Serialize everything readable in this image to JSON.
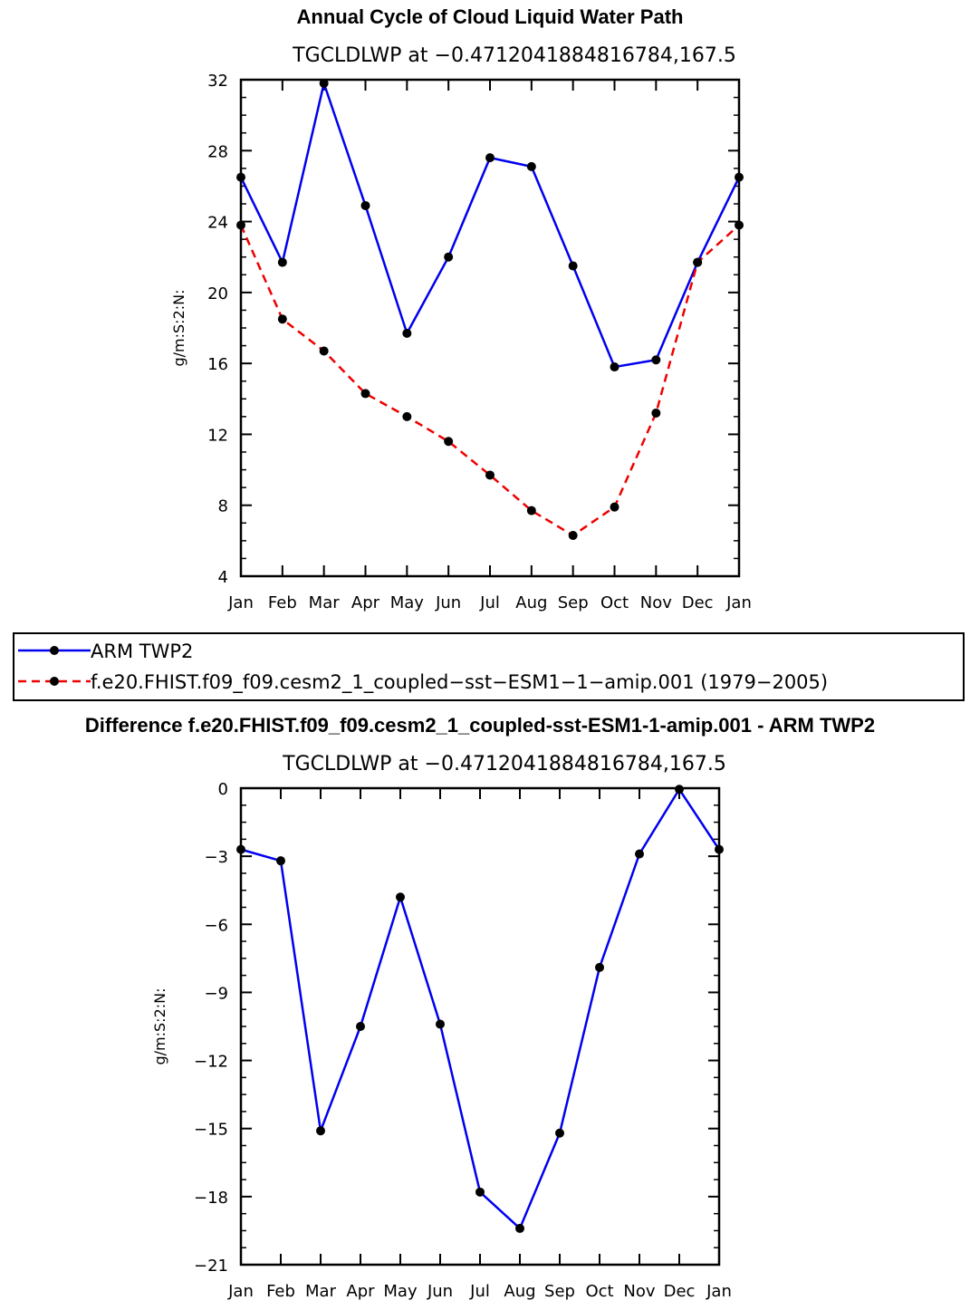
{
  "chart_data": [
    {
      "type": "line",
      "title": "Annual Cycle of Cloud Liquid Water Path",
      "subtitle": "TGCLDLWP at −0.4712041884816784,167.5",
      "xlabel": "",
      "ylabel": "g/m:S:2:N:",
      "ylim": [
        4,
        32
      ],
      "yticks": [
        "32",
        "28",
        "24",
        "20",
        "16",
        "12",
        "8",
        "4"
      ],
      "ytick_values": [
        32,
        28,
        24,
        20,
        16,
        12,
        8,
        4
      ],
      "categories": [
        "Jan",
        "Feb",
        "Mar",
        "Apr",
        "May",
        "Jun",
        "Jul",
        "Aug",
        "Sep",
        "Oct",
        "Nov",
        "Dec",
        "Jan"
      ],
      "series": [
        {
          "name": "ARM TWP2",
          "color": "#0000ee",
          "dash": "solid",
          "values": [
            26.5,
            21.7,
            31.8,
            24.9,
            17.7,
            22.0,
            27.6,
            27.1,
            21.5,
            15.8,
            16.2,
            21.7,
            26.5
          ]
        },
        {
          "name": "f.e20.FHIST.f09_f09.cesm2_1_coupled−sst−ESM1−1−amip.001 (1979−2005)",
          "color": "#ee0000",
          "dash": "dashed",
          "values": [
            23.8,
            18.5,
            16.7,
            14.3,
            13.0,
            11.6,
            9.7,
            7.7,
            6.3,
            7.9,
            13.2,
            21.7,
            23.8
          ]
        }
      ]
    },
    {
      "type": "line",
      "title": "Difference f.e20.FHIST.f09_f09.cesm2_1_coupled-sst-ESM1-1-amip.001 - ARM TWP2",
      "subtitle": "TGCLDLWP at −0.4712041884816784,167.5",
      "xlabel": "",
      "ylabel": "g/m:S:2:N:",
      "ylim": [
        -21,
        0
      ],
      "yticks": [
        "0",
        "−3",
        "−6",
        "−9",
        "−12",
        "−15",
        "−18",
        "−21"
      ],
      "ytick_values": [
        0,
        -3,
        -6,
        -9,
        -12,
        -15,
        -18,
        -21
      ],
      "categories": [
        "Jan",
        "Feb",
        "Mar",
        "Apr",
        "May",
        "Jun",
        "Jul",
        "Aug",
        "Sep",
        "Oct",
        "Nov",
        "Dec",
        "Jan"
      ],
      "series": [
        {
          "name": "Difference",
          "color": "#0000ee",
          "dash": "solid",
          "values": [
            -2.7,
            -3.2,
            -15.1,
            -10.5,
            -4.8,
            -10.4,
            -17.8,
            -19.4,
            -15.2,
            -7.9,
            -2.9,
            -0.05,
            -2.7
          ]
        }
      ]
    }
  ]
}
